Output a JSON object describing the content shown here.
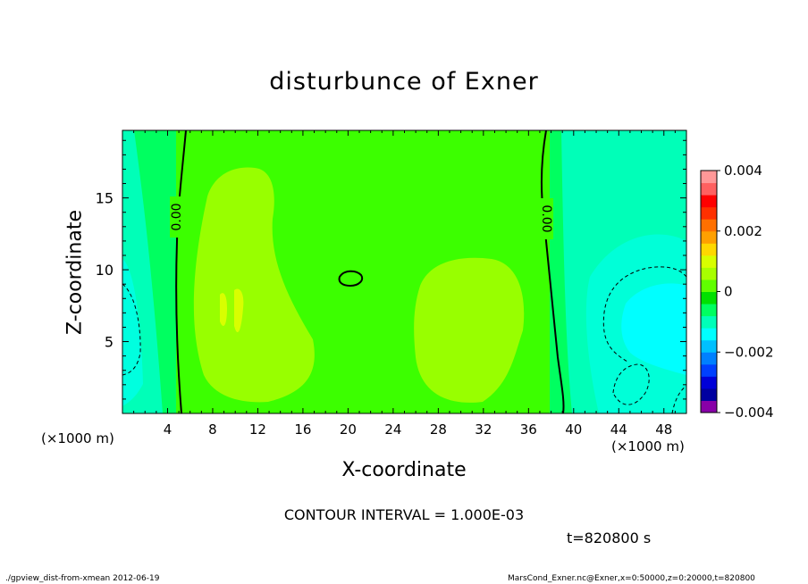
{
  "chart_data": {
    "type": "heatmap",
    "title": "disturbunce of Exner",
    "xlabel": "X-coordinate",
    "ylabel": "Z-coordinate",
    "x_unit": "(×1000 m)",
    "xlim": [
      0,
      50
    ],
    "ylim": [
      0,
      19.7
    ],
    "x_ticks": [
      4,
      8,
      12,
      16,
      20,
      24,
      28,
      32,
      36,
      40,
      44,
      48
    ],
    "y_ticks": [
      5,
      10,
      15
    ],
    "colorbar": {
      "vmin": -0.004,
      "vmax": 0.004,
      "tick_values": [
        0.004,
        0.002,
        0,
        -0.002,
        -0.004
      ],
      "tick_labels": [
        "0.004",
        "0.002",
        "0",
        "−0.002",
        "−0.004"
      ],
      "colors": [
        "#8800a8",
        "#0000a0",
        "#0000d8",
        "#0040ff",
        "#0080ff",
        "#00c0ff",
        "#00ffff",
        "#00ffb8",
        "#00ff60",
        "#00e000",
        "#60ff00",
        "#a8ff00",
        "#d8ff00",
        "#ffd800",
        "#ffa000",
        "#ff7000",
        "#ff3000",
        "#ff0000",
        "#ff6060",
        "#ff9898"
      ]
    },
    "contour_labels": [
      "0.00",
      "0.00"
    ],
    "contour_interval": "CONTOUR INTERVAL = 1.000E-03",
    "time": "t=820800 s"
  },
  "footer": {
    "left": "./gpview_dist-from-xmean  2012-06-19",
    "right": "MarsCond_Exner.nc@Exner,x=0:50000,z=0:20000,t=820800"
  }
}
